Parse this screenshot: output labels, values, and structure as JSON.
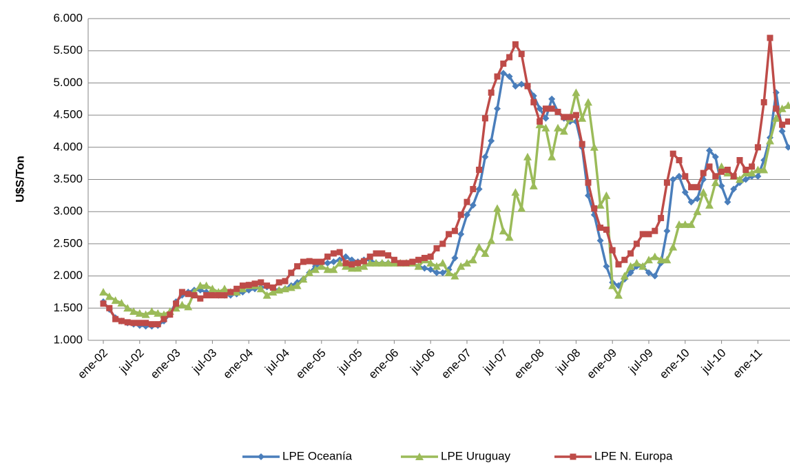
{
  "chart_data": {
    "type": "line",
    "y_label": "U$S/Ton",
    "categories": [
      "ene-02",
      null,
      null,
      null,
      null,
      null,
      "jul-02",
      null,
      null,
      null,
      null,
      null,
      "ene-03",
      null,
      null,
      null,
      null,
      null,
      "jul-03",
      null,
      null,
      null,
      null,
      null,
      "ene-04",
      null,
      null,
      null,
      null,
      null,
      "jul-04",
      null,
      null,
      null,
      null,
      null,
      "ene-05",
      null,
      null,
      null,
      null,
      null,
      "jul-05",
      null,
      null,
      null,
      null,
      null,
      "ene-06",
      null,
      null,
      null,
      null,
      null,
      "jul-06",
      null,
      null,
      null,
      null,
      null,
      "ene-07",
      null,
      null,
      null,
      null,
      null,
      "jul-07",
      null,
      null,
      null,
      null,
      null,
      "ene-08",
      null,
      null,
      null,
      null,
      null,
      "jul-08",
      null,
      null,
      null,
      null,
      null,
      "ene-09",
      null,
      null,
      null,
      null,
      null,
      "jul-09",
      null,
      null,
      null,
      null,
      null,
      "ene-10",
      null,
      null,
      null,
      null,
      null,
      "jul-10",
      null,
      null,
      null,
      null,
      null,
      "ene-11",
      null,
      null,
      null,
      null,
      null
    ],
    "series": [
      {
        "name": "LPE Oceanía",
        "color": "#4a7ebb",
        "marker": "diamond",
        "values": [
          1600,
          1480,
          1350,
          1300,
          1270,
          1250,
          1230,
          1220,
          1220,
          1230,
          1300,
          1400,
          1600,
          1700,
          1750,
          1780,
          1780,
          1750,
          1720,
          1700,
          1700,
          1700,
          1720,
          1750,
          1780,
          1800,
          1820,
          1830,
          1800,
          1780,
          1800,
          1850,
          1900,
          1950,
          2050,
          2150,
          2200,
          2200,
          2220,
          2250,
          2300,
          2250,
          2220,
          2250,
          2250,
          2200,
          2200,
          2200,
          2200,
          2200,
          2200,
          2200,
          2150,
          2120,
          2100,
          2050,
          2050,
          2100,
          2280,
          2650,
          2950,
          3100,
          3350,
          3850,
          4100,
          4600,
          5150,
          5100,
          4950,
          4980,
          4950,
          4800,
          4600,
          4450,
          4750,
          4550,
          4450,
          4400,
          4400,
          4000,
          3250,
          2950,
          2550,
          2150,
          1900,
          1850,
          1950,
          2050,
          2150,
          2150,
          2050,
          2000,
          2200,
          2700,
          3500,
          3550,
          3300,
          3150,
          3200,
          3500,
          3950,
          3850,
          3400,
          3150,
          3350,
          3450,
          3500,
          3550,
          3550,
          3800,
          4150,
          4850,
          4250,
          4000
        ]
      },
      {
        "name": "LPE Uruguay",
        "color": "#9bbb59",
        "marker": "triangle",
        "values": [
          1750,
          1680,
          1620,
          1580,
          1500,
          1450,
          1420,
          1400,
          1450,
          1420,
          1400,
          1450,
          1500,
          1550,
          1520,
          1750,
          1850,
          1850,
          1800,
          1750,
          1800,
          1750,
          1750,
          1800,
          1850,
          1850,
          1800,
          1700,
          1750,
          1780,
          1800,
          1820,
          1850,
          1950,
          2050,
          2100,
          2150,
          2100,
          2100,
          2200,
          2150,
          2120,
          2120,
          2150,
          2200,
          2200,
          2200,
          2200,
          2200,
          2200,
          2200,
          2200,
          2150,
          2250,
          2200,
          2150,
          2200,
          2050,
          2000,
          2150,
          2200,
          2250,
          2450,
          2350,
          2550,
          3050,
          2700,
          2600,
          3300,
          3050,
          3850,
          3400,
          4350,
          4300,
          3850,
          4300,
          4250,
          4450,
          4850,
          4450,
          4700,
          4000,
          3100,
          3250,
          1850,
          1700,
          2000,
          2150,
          2200,
          2150,
          2250,
          2300,
          2250,
          2250,
          2450,
          2800,
          2800,
          2800,
          3000,
          3300,
          3100,
          3450,
          3700,
          3600,
          3550,
          3500,
          3600,
          3600,
          3650,
          3650,
          4100,
          4450,
          4600,
          4650
        ]
      },
      {
        "name": "LPE N. Europa",
        "color": "#be4b48",
        "marker": "square",
        "values": [
          1570,
          1500,
          1330,
          1300,
          1280,
          1270,
          1270,
          1270,
          1250,
          1250,
          1330,
          1400,
          1570,
          1750,
          1720,
          1700,
          1650,
          1700,
          1700,
          1700,
          1700,
          1750,
          1800,
          1850,
          1860,
          1880,
          1900,
          1850,
          1820,
          1900,
          1920,
          2050,
          2150,
          2220,
          2230,
          2220,
          2220,
          2300,
          2350,
          2370,
          2200,
          2180,
          2200,
          2230,
          2300,
          2350,
          2350,
          2320,
          2250,
          2200,
          2200,
          2220,
          2250,
          2280,
          2300,
          2430,
          2500,
          2650,
          2700,
          2950,
          3150,
          3350,
          3650,
          4450,
          4850,
          5100,
          5300,
          5400,
          5600,
          5450,
          4950,
          4700,
          4400,
          4600,
          4600,
          4550,
          4470,
          4470,
          4500,
          4050,
          3450,
          3050,
          2750,
          2720,
          2400,
          2180,
          2250,
          2350,
          2500,
          2650,
          2650,
          2700,
          2900,
          3450,
          3900,
          3800,
          3550,
          3380,
          3380,
          3600,
          3700,
          3550,
          3620,
          3650,
          3550,
          3800,
          3650,
          3700,
          4000,
          4700,
          5700,
          4600,
          4350,
          4400
        ]
      }
    ],
    "ylim": [
      1000,
      6000
    ],
    "yticks": [
      {
        "value": 1000,
        "label": "1.000"
      },
      {
        "value": 1500,
        "label": "1.500"
      },
      {
        "value": 2000,
        "label": "2.000"
      },
      {
        "value": 2500,
        "label": "2.500"
      },
      {
        "value": 3000,
        "label": "3.000"
      },
      {
        "value": 3500,
        "label": "3.500"
      },
      {
        "value": 4000,
        "label": "4.000"
      },
      {
        "value": 4500,
        "label": "4.500"
      },
      {
        "value": 5000,
        "label": "5.000"
      },
      {
        "value": 5500,
        "label": "5.500"
      },
      {
        "value": 6000,
        "label": "6.000"
      }
    ],
    "grid": true,
    "legend": "bottom"
  }
}
